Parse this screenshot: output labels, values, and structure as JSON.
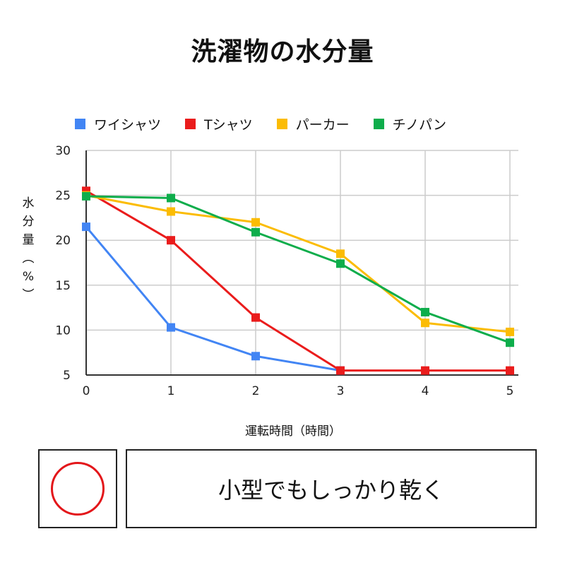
{
  "chart_data": {
    "type": "line",
    "title": "洗濯物の水分量",
    "xlabel": "運転時間（時間）",
    "ylabel": "水分量（%）",
    "x": [
      0,
      1,
      2,
      3,
      4,
      5
    ],
    "ylim": [
      5,
      30
    ],
    "yticks": [
      5,
      10,
      15,
      20,
      25,
      30
    ],
    "grid": true,
    "legend_position": "top",
    "series": [
      {
        "name": "ワイシャツ",
        "color": "#4285f4",
        "values": [
          21.5,
          10.3,
          7.1,
          5.5,
          null,
          null
        ]
      },
      {
        "name": "Tシャツ",
        "color": "#ea1c1c",
        "values": [
          25.5,
          20.0,
          11.4,
          5.5,
          5.5,
          5.5
        ]
      },
      {
        "name": "パーカー",
        "color": "#fbbc04",
        "values": [
          25.0,
          23.2,
          22.0,
          18.5,
          10.8,
          9.8
        ]
      },
      {
        "name": "チノパン",
        "color": "#0ead4b",
        "values": [
          24.9,
          24.7,
          20.9,
          17.4,
          12.0,
          8.6
        ]
      }
    ]
  },
  "footer": {
    "badge_icon": "circle-mark-icon",
    "badge_color": "#e3161a",
    "caption": "小型でもしっかり乾く"
  }
}
